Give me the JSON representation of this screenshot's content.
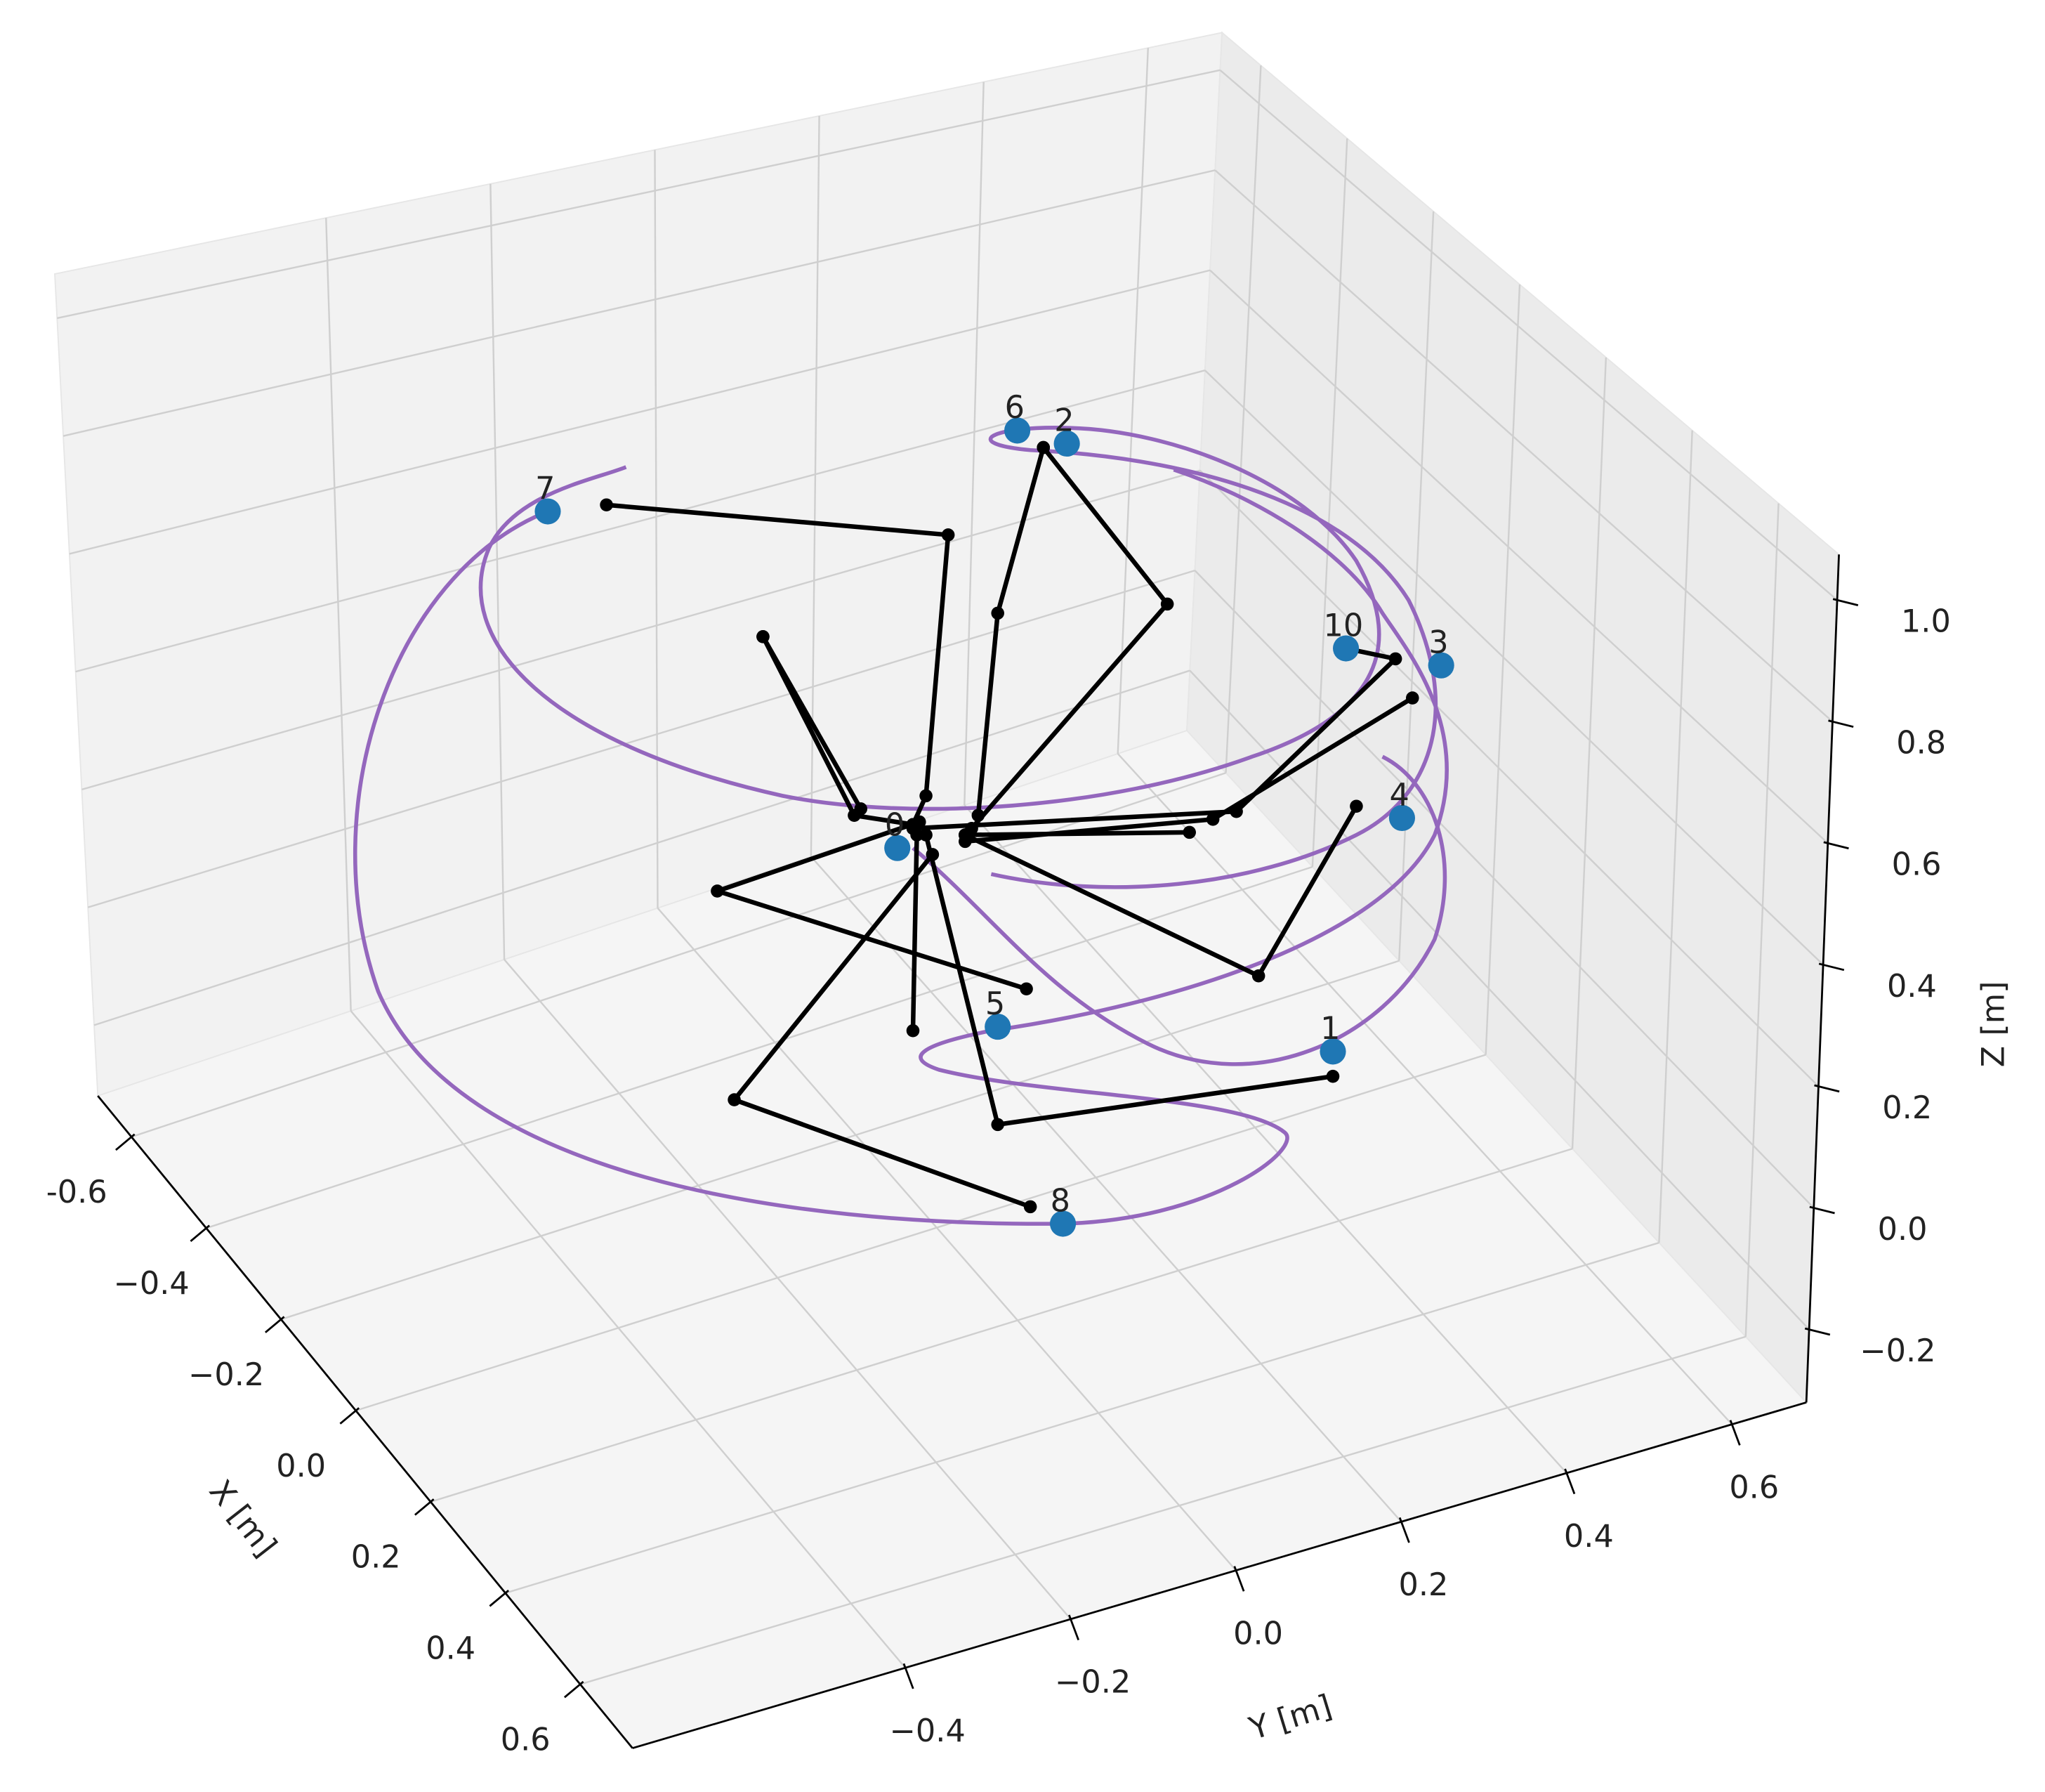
{
  "chart_data": {
    "type": "trajectory3d",
    "xlabel": "X [m]",
    "ylabel": "Y [m]",
    "zlabel": "Z [m]",
    "xlim": [
      -0.69,
      0.74
    ],
    "ylim": [
      -0.73,
      0.69
    ],
    "zlim": [
      -0.32,
      1.075
    ],
    "xticks": [
      {
        "value": -0.6,
        "label": "-0.6"
      },
      {
        "value": -0.4,
        "label": "−0.4"
      },
      {
        "value": -0.2,
        "label": "−0.2"
      },
      {
        "value": 0,
        "label": "0.0"
      },
      0.2,
      0.4,
      0.6
    ],
    "yticks": [
      {
        "value": -0.4,
        "label": "−0.4"
      },
      {
        "value": -0.2,
        "label": "−0.2"
      },
      {
        "value": 0,
        "label": "0.0"
      },
      0.2,
      0.4,
      0.6
    ],
    "zticks": [
      {
        "value": -0.2,
        "label": "−0.2"
      },
      {
        "value": 0,
        "label": "0.0"
      },
      0.2,
      0.4,
      0.6,
      0.8,
      {
        "value": 1,
        "label": "1.0"
      }
    ],
    "grid": true,
    "trajectory_color": "#9467bd",
    "arm_color": "#000000",
    "waypoint_color": "#1f77b4",
    "point_labels": [
      "0",
      "1",
      "2",
      "3",
      "4",
      "5",
      "6",
      "7",
      "8",
      "10"
    ]
  }
}
